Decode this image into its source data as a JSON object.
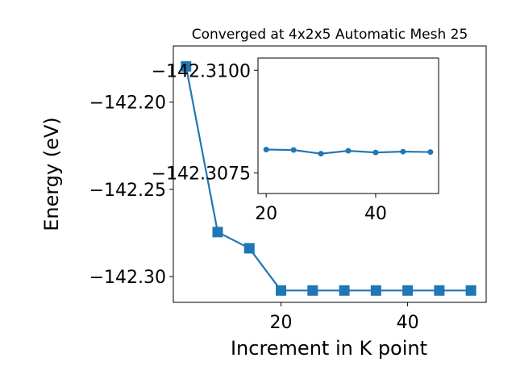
{
  "chart_data": [
    {
      "type": "line",
      "title": "Converged at 4x2x5 Automatic Mesh 25",
      "xlabel": "Increment in K point",
      "ylabel": "Energy (eV)",
      "x": [
        5,
        10,
        15,
        20,
        25,
        30,
        35,
        40,
        45,
        50
      ],
      "series": [
        {
          "values": [
            -142.1795,
            -142.2745,
            -142.2838,
            -142.308,
            -142.308,
            -142.308,
            -142.308,
            -142.308,
            -142.308,
            -142.308
          ],
          "marker": "square",
          "color": "#1f77b4"
        }
      ],
      "xlim": [
        3.0,
        52.4
      ],
      "ylim": [
        -142.3148,
        -142.1678
      ],
      "xticks": [
        20,
        40
      ],
      "xtick_labels": [
        "20",
        "40"
      ],
      "yticks": [
        -142.2,
        -142.25,
        -142.3
      ],
      "ytick_labels": [
        "−142.20",
        "−142.25",
        "−142.30"
      ],
      "grid": false
    },
    {
      "type": "line",
      "title": "",
      "xlabel": "",
      "ylabel": "",
      "x": [
        20,
        25,
        30,
        35,
        40,
        45,
        50
      ],
      "series": [
        {
          "values": [
            -142.30807,
            -142.30806,
            -142.30797,
            -142.30804,
            -142.308,
            -142.30802,
            -142.30801
          ],
          "marker": "circle",
          "color": "#1f77b4"
        }
      ],
      "xlim": [
        18.5,
        51.5
      ],
      "ylim": [
        -142.307,
        -142.3103
      ],
      "xticks": [
        20,
        40
      ],
      "xtick_labels": [
        "20",
        "40"
      ],
      "yticks": [
        -142.31,
        -142.3075
      ],
      "ytick_labels": [
        "−142.3100",
        "−142.3075"
      ],
      "grid": false
    }
  ]
}
